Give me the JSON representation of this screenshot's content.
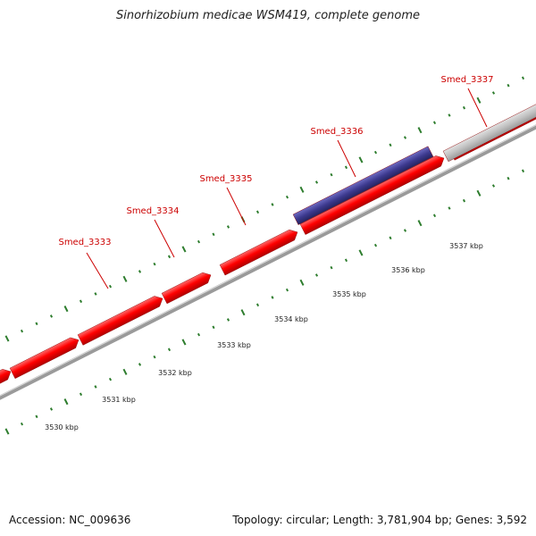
{
  "title": "Sinorhizobium medicae WSM419, complete genome",
  "footer": {
    "accession_label": "Accession:",
    "accession": "NC_009636",
    "topology_text": "Topology: circular; Length: 3,781,904 bp; Genes: 3,592"
  },
  "colors": {
    "gene_forward": "#ff0000",
    "gene_selected": "#3d3a8f",
    "gene_other": "#c0c0c0",
    "backbone": "#808080",
    "tick": "#2e7d2e",
    "label": "#cc0000"
  },
  "genes": [
    {
      "name": "Smed_3333",
      "label_color": "red",
      "fill": "red"
    },
    {
      "name": "Smed_3334",
      "label_color": "red",
      "fill": "red"
    },
    {
      "name": "Smed_3335",
      "label_color": "red",
      "fill": "red"
    },
    {
      "name": "Smed_3336",
      "label_color": "red",
      "fill": "blue"
    },
    {
      "name": "Smed_3337",
      "label_color": "red",
      "fill": "gray"
    }
  ],
  "kbp_labels": [
    "3530 kbp",
    "3531 kbp",
    "3532 kbp",
    "3533 kbp",
    "3534 kbp",
    "3535 kbp",
    "3536 kbp",
    "3537 kbp"
  ]
}
